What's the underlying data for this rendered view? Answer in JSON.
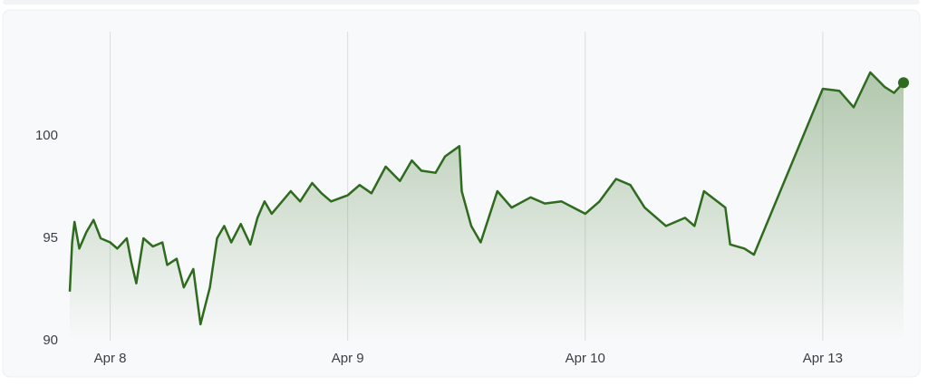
{
  "chart_data": {
    "type": "line",
    "color": "#2e6b1e",
    "x": [
      -0.17,
      -0.16,
      -0.15,
      -0.13,
      -0.1,
      -0.07,
      -0.04,
      0.0,
      0.03,
      0.07,
      0.09,
      0.11,
      0.14,
      0.18,
      0.22,
      0.24,
      0.28,
      0.31,
      0.35,
      0.38,
      0.42,
      0.45,
      0.48,
      0.51,
      0.55,
      0.59,
      0.62,
      0.65,
      0.68,
      0.76,
      0.8,
      0.85,
      0.89,
      0.93,
      1.0,
      1.05,
      1.1,
      1.16,
      1.22,
      1.27,
      1.31,
      1.37,
      1.41,
      1.47,
      1.48,
      1.52,
      1.56,
      1.63,
      1.69,
      1.77,
      1.83,
      1.9,
      2.0,
      2.06,
      2.13,
      2.19,
      2.25,
      2.34,
      2.42,
      2.46,
      2.5,
      2.59,
      2.61,
      2.67,
      2.71,
      3.0,
      3.07,
      3.13,
      3.2,
      3.26,
      3.3,
      3.34
    ],
    "values": [
      92.4,
      94.8,
      95.8,
      94.5,
      95.3,
      95.9,
      95.0,
      94.8,
      94.5,
      95.0,
      93.8,
      92.8,
      95.0,
      94.6,
      94.8,
      93.7,
      94.0,
      92.6,
      93.5,
      90.8,
      92.6,
      95.0,
      95.6,
      94.8,
      95.7,
      94.7,
      96.0,
      96.8,
      96.2,
      97.3,
      96.8,
      97.7,
      97.2,
      96.8,
      97.1,
      97.6,
      97.2,
      98.5,
      97.8,
      98.8,
      98.3,
      98.2,
      99.0,
      99.5,
      97.3,
      95.6,
      94.8,
      97.3,
      96.5,
      97.0,
      96.7,
      96.8,
      96.2,
      96.8,
      97.9,
      97.6,
      96.5,
      95.6,
      96.0,
      95.6,
      97.3,
      96.5,
      94.7,
      94.5,
      94.2,
      102.3,
      102.2,
      101.4,
      103.1,
      102.4,
      102.1,
      102.6
    ],
    "xlim": [
      -0.17,
      3.34
    ],
    "xticks": [
      {
        "value": 0,
        "label": "Apr 8"
      },
      {
        "value": 1,
        "label": "Apr 9"
      },
      {
        "value": 2,
        "label": "Apr 10"
      },
      {
        "value": 3,
        "label": "Apr 13"
      }
    ],
    "ylim": [
      90,
      105
    ],
    "yticks": [
      90,
      95,
      100
    ],
    "grid": true
  }
}
